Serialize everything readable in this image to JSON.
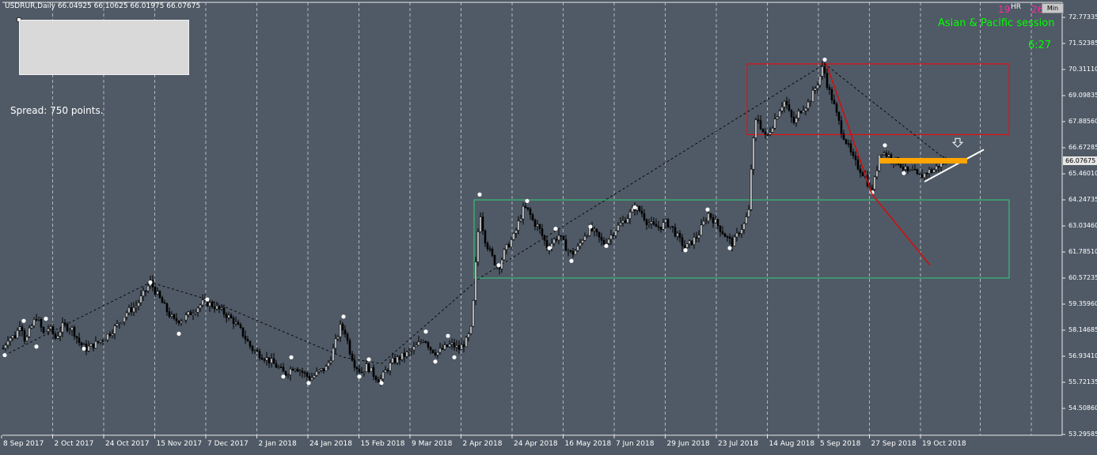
{
  "header": {
    "symbol_text": "USDRUR,Daily  66.04925 66.10625 66.01975 66.07675"
  },
  "info": {
    "spread_text": "Spread: 750 points."
  },
  "session": {
    "hr_num1": "19",
    "hr_label": "HR",
    "hr_num2": "26",
    "min_label": "Min",
    "name": "Asian & Pacific session",
    "timer": "6:27"
  },
  "colors": {
    "background": "#505a66",
    "candle": "#000000",
    "zigzag": "#000000",
    "swing_dot": "#ffffff",
    "red_box": "#ff0000",
    "green_box": "#2fd07a",
    "trend_red": "#cc1111",
    "support_line": "#ffffff",
    "resistance_band": "#ffa500"
  },
  "chart_data": {
    "type": "candlestick",
    "symbol": "USDRUR",
    "timeframe": "Daily",
    "last_bar": {
      "open": 66.04925,
      "high": 66.10625,
      "low": 66.01975,
      "close": 66.07675
    },
    "current_price_label": "66.07675",
    "ylim": [
      53.29,
      73.0
    ],
    "y_ticks": [
      "72.77335",
      "71.52385",
      "70.31110",
      "69.09835",
      "67.88560",
      "66.67285",
      "65.46010",
      "64.24735",
      "63.03460",
      "61.78510",
      "60.57235",
      "59.35960",
      "58.14685",
      "56.93410",
      "55.72135",
      "54.50860",
      "53.29585"
    ],
    "x_ticks": [
      "8 Sep 2017",
      "2 Oct 2017",
      "24 Oct 2017",
      "15 Nov 2017",
      "7 Dec 2017",
      "2 Jan 2018",
      "24 Jan 2018",
      "15 Feb 2018",
      "9 Mar 2018",
      "2 Apr 2018",
      "24 Apr 2018",
      "16 May 2018",
      "7 Jun 2018",
      "29 Jun 2018",
      "23 Jul 2018",
      "14 Aug 2018",
      "5 Sep 2018",
      "27 Sep 2018",
      "19 Oct 2018"
    ],
    "price_path": [
      [
        0,
        57.0
      ],
      [
        10,
        57.8
      ],
      [
        20,
        57.9
      ],
      [
        26,
        58.6
      ],
      [
        32,
        57.6
      ],
      [
        38,
        58.2
      ],
      [
        46,
        58.8
      ],
      [
        55,
        58.0
      ],
      [
        62,
        58.3
      ],
      [
        70,
        57.8
      ],
      [
        80,
        58.4
      ],
      [
        92,
        58.2
      ],
      [
        100,
        57.6
      ],
      [
        108,
        57.3
      ],
      [
        120,
        57.5
      ],
      [
        135,
        57.9
      ],
      [
        148,
        58.4
      ],
      [
        160,
        59.0
      ],
      [
        172,
        59.3
      ],
      [
        182,
        59.9
      ],
      [
        190,
        60.4
      ],
      [
        196,
        60.0
      ],
      [
        204,
        59.5
      ],
      [
        212,
        59.0
      ],
      [
        220,
        58.6
      ],
      [
        232,
        58.7
      ],
      [
        245,
        59.1
      ],
      [
        258,
        59.5
      ],
      [
        270,
        59.3
      ],
      [
        282,
        59.0
      ],
      [
        295,
        58.6
      ],
      [
        305,
        58.1
      ],
      [
        318,
        57.3
      ],
      [
        330,
        57.0
      ],
      [
        342,
        56.7
      ],
      [
        352,
        56.4
      ],
      [
        360,
        56.1
      ],
      [
        372,
        56.5
      ],
      [
        382,
        56.2
      ],
      [
        392,
        55.9
      ],
      [
        402,
        56.2
      ],
      [
        412,
        56.4
      ],
      [
        418,
        56.9
      ],
      [
        424,
        57.6
      ],
      [
        430,
        58.3
      ],
      [
        436,
        58.1
      ],
      [
        442,
        57.2
      ],
      [
        448,
        56.6
      ],
      [
        456,
        56.2
      ],
      [
        464,
        56.5
      ],
      [
        472,
        56.1
      ],
      [
        480,
        55.8
      ],
      [
        488,
        56.3
      ],
      [
        496,
        56.7
      ],
      [
        506,
        56.9
      ],
      [
        516,
        57.1
      ],
      [
        526,
        57.4
      ],
      [
        536,
        57.8
      ],
      [
        544,
        57.3
      ],
      [
        552,
        57.1
      ],
      [
        560,
        57.3
      ],
      [
        570,
        57.5
      ],
      [
        580,
        57.3
      ],
      [
        590,
        57.7
      ],
      [
        596,
        58.3
      ],
      [
        600,
        60.6
      ],
      [
        603,
        62.5
      ],
      [
        607,
        63.6
      ],
      [
        612,
        62.5
      ],
      [
        618,
        61.9
      ],
      [
        624,
        61.4
      ],
      [
        630,
        61.1
      ],
      [
        637,
        61.8
      ],
      [
        643,
        62.2
      ],
      [
        650,
        62.6
      ],
      [
        657,
        63.4
      ],
      [
        662,
        63.9
      ],
      [
        668,
        63.7
      ],
      [
        674,
        63.2
      ],
      [
        680,
        63.0
      ],
      [
        686,
        62.5
      ],
      [
        692,
        62.0
      ],
      [
        698,
        62.3
      ],
      [
        706,
        62.6
      ],
      [
        714,
        62.1
      ],
      [
        722,
        61.7
      ],
      [
        730,
        62.0
      ],
      [
        738,
        62.6
      ],
      [
        746,
        62.9
      ],
      [
        754,
        62.6
      ],
      [
        762,
        62.2
      ],
      [
        770,
        62.5
      ],
      [
        778,
        62.9
      ],
      [
        786,
        63.2
      ],
      [
        794,
        63.5
      ],
      [
        802,
        63.9
      ],
      [
        810,
        63.7
      ],
      [
        818,
        63.2
      ],
      [
        826,
        63.0
      ],
      [
        834,
        63.0
      ],
      [
        842,
        63.2
      ],
      [
        850,
        62.9
      ],
      [
        858,
        62.4
      ],
      [
        866,
        62.0
      ],
      [
        874,
        62.3
      ],
      [
        882,
        62.6
      ],
      [
        888,
        63.1
      ],
      [
        895,
        63.6
      ],
      [
        902,
        63.3
      ],
      [
        910,
        62.9
      ],
      [
        918,
        62.5
      ],
      [
        926,
        62.2
      ],
      [
        934,
        62.8
      ],
      [
        940,
        63.1
      ],
      [
        946,
        63.7
      ],
      [
        950,
        66.4
      ],
      [
        956,
        68.2
      ],
      [
        962,
        67.6
      ],
      [
        968,
        67.1
      ],
      [
        974,
        67.6
      ],
      [
        980,
        68.1
      ],
      [
        986,
        68.6
      ],
      [
        992,
        68.9
      ],
      [
        998,
        68.2
      ],
      [
        1004,
        67.8
      ],
      [
        1010,
        68.4
      ],
      [
        1016,
        68.6
      ],
      [
        1022,
        68.8
      ],
      [
        1028,
        69.3
      ],
      [
        1034,
        69.8
      ],
      [
        1040,
        70.5
      ],
      [
        1046,
        69.5
      ],
      [
        1052,
        68.9
      ],
      [
        1058,
        68.1
      ],
      [
        1064,
        67.4
      ],
      [
        1070,
        66.9
      ],
      [
        1076,
        66.3
      ],
      [
        1082,
        65.9
      ],
      [
        1088,
        65.6
      ],
      [
        1094,
        65.3
      ],
      [
        1100,
        64.6
      ],
      [
        1106,
        65.3
      ],
      [
        1112,
        66.6
      ],
      [
        1118,
        66.4
      ],
      [
        1124,
        66.3
      ],
      [
        1130,
        66.1
      ],
      [
        1136,
        66.0
      ],
      [
        1142,
        65.7
      ],
      [
        1148,
        65.5
      ],
      [
        1154,
        65.6
      ],
      [
        1160,
        65.3
      ],
      [
        1166,
        65.4
      ],
      [
        1172,
        65.6
      ],
      [
        1178,
        65.6
      ],
      [
        1184,
        65.8
      ],
      [
        1190,
        66.0
      ],
      [
        1196,
        66.08
      ]
    ],
    "swing_points": [
      [
        6,
        57.0
      ],
      [
        30,
        58.6
      ],
      [
        46,
        57.4
      ],
      [
        58,
        58.7
      ],
      [
        106,
        57.3
      ],
      [
        190,
        60.4
      ],
      [
        226,
        58.0
      ],
      [
        262,
        59.6
      ],
      [
        358,
        56.0
      ],
      [
        368,
        56.9
      ],
      [
        390,
        55.7
      ],
      [
        434,
        58.8
      ],
      [
        454,
        56.0
      ],
      [
        466,
        56.8
      ],
      [
        482,
        55.7
      ],
      [
        538,
        58.1
      ],
      [
        550,
        56.7
      ],
      [
        566,
        57.9
      ],
      [
        574,
        56.9
      ],
      [
        606,
        64.5
      ],
      [
        630,
        61.2
      ],
      [
        666,
        64.2
      ],
      [
        694,
        62.0
      ],
      [
        702,
        62.9
      ],
      [
        722,
        61.4
      ],
      [
        746,
        63.0
      ],
      [
        766,
        62.1
      ],
      [
        802,
        63.9
      ],
      [
        866,
        61.9
      ],
      [
        894,
        63.8
      ],
      [
        922,
        62.0
      ],
      [
        1042,
        70.8
      ],
      [
        1102,
        64.6
      ],
      [
        1118,
        66.8
      ],
      [
        1142,
        65.5
      ],
      [
        1196,
        66.1
      ]
    ],
    "zigzag": [
      [
        6,
        57.0
      ],
      [
        190,
        60.4
      ],
      [
        262,
        59.6
      ],
      [
        434,
        56.9
      ],
      [
        482,
        56.6
      ],
      [
        606,
        60.6
      ],
      [
        1042,
        70.6
      ],
      [
        1196,
        66.1
      ]
    ],
    "red_box": {
      "x_from": 944,
      "x_to": 1275,
      "price_top": 70.6,
      "price_bottom": 67.3
    },
    "green_box": {
      "x_from": 599,
      "x_to": 1275,
      "price_top": 64.25,
      "price_bottom": 60.6
    },
    "trend_line_red": [
      [
        1044,
        70.6
      ],
      [
        1102,
        64.5
      ],
      [
        1175,
        61.2
      ]
    ],
    "support_line": [
      [
        1168,
        65.1
      ],
      [
        1243,
        66.6
      ]
    ],
    "resistance_band": {
      "x_from": 1112,
      "x_to": 1222,
      "price": 66.08
    },
    "down_arrow": {
      "x": 1210,
      "price": 66.9
    }
  }
}
